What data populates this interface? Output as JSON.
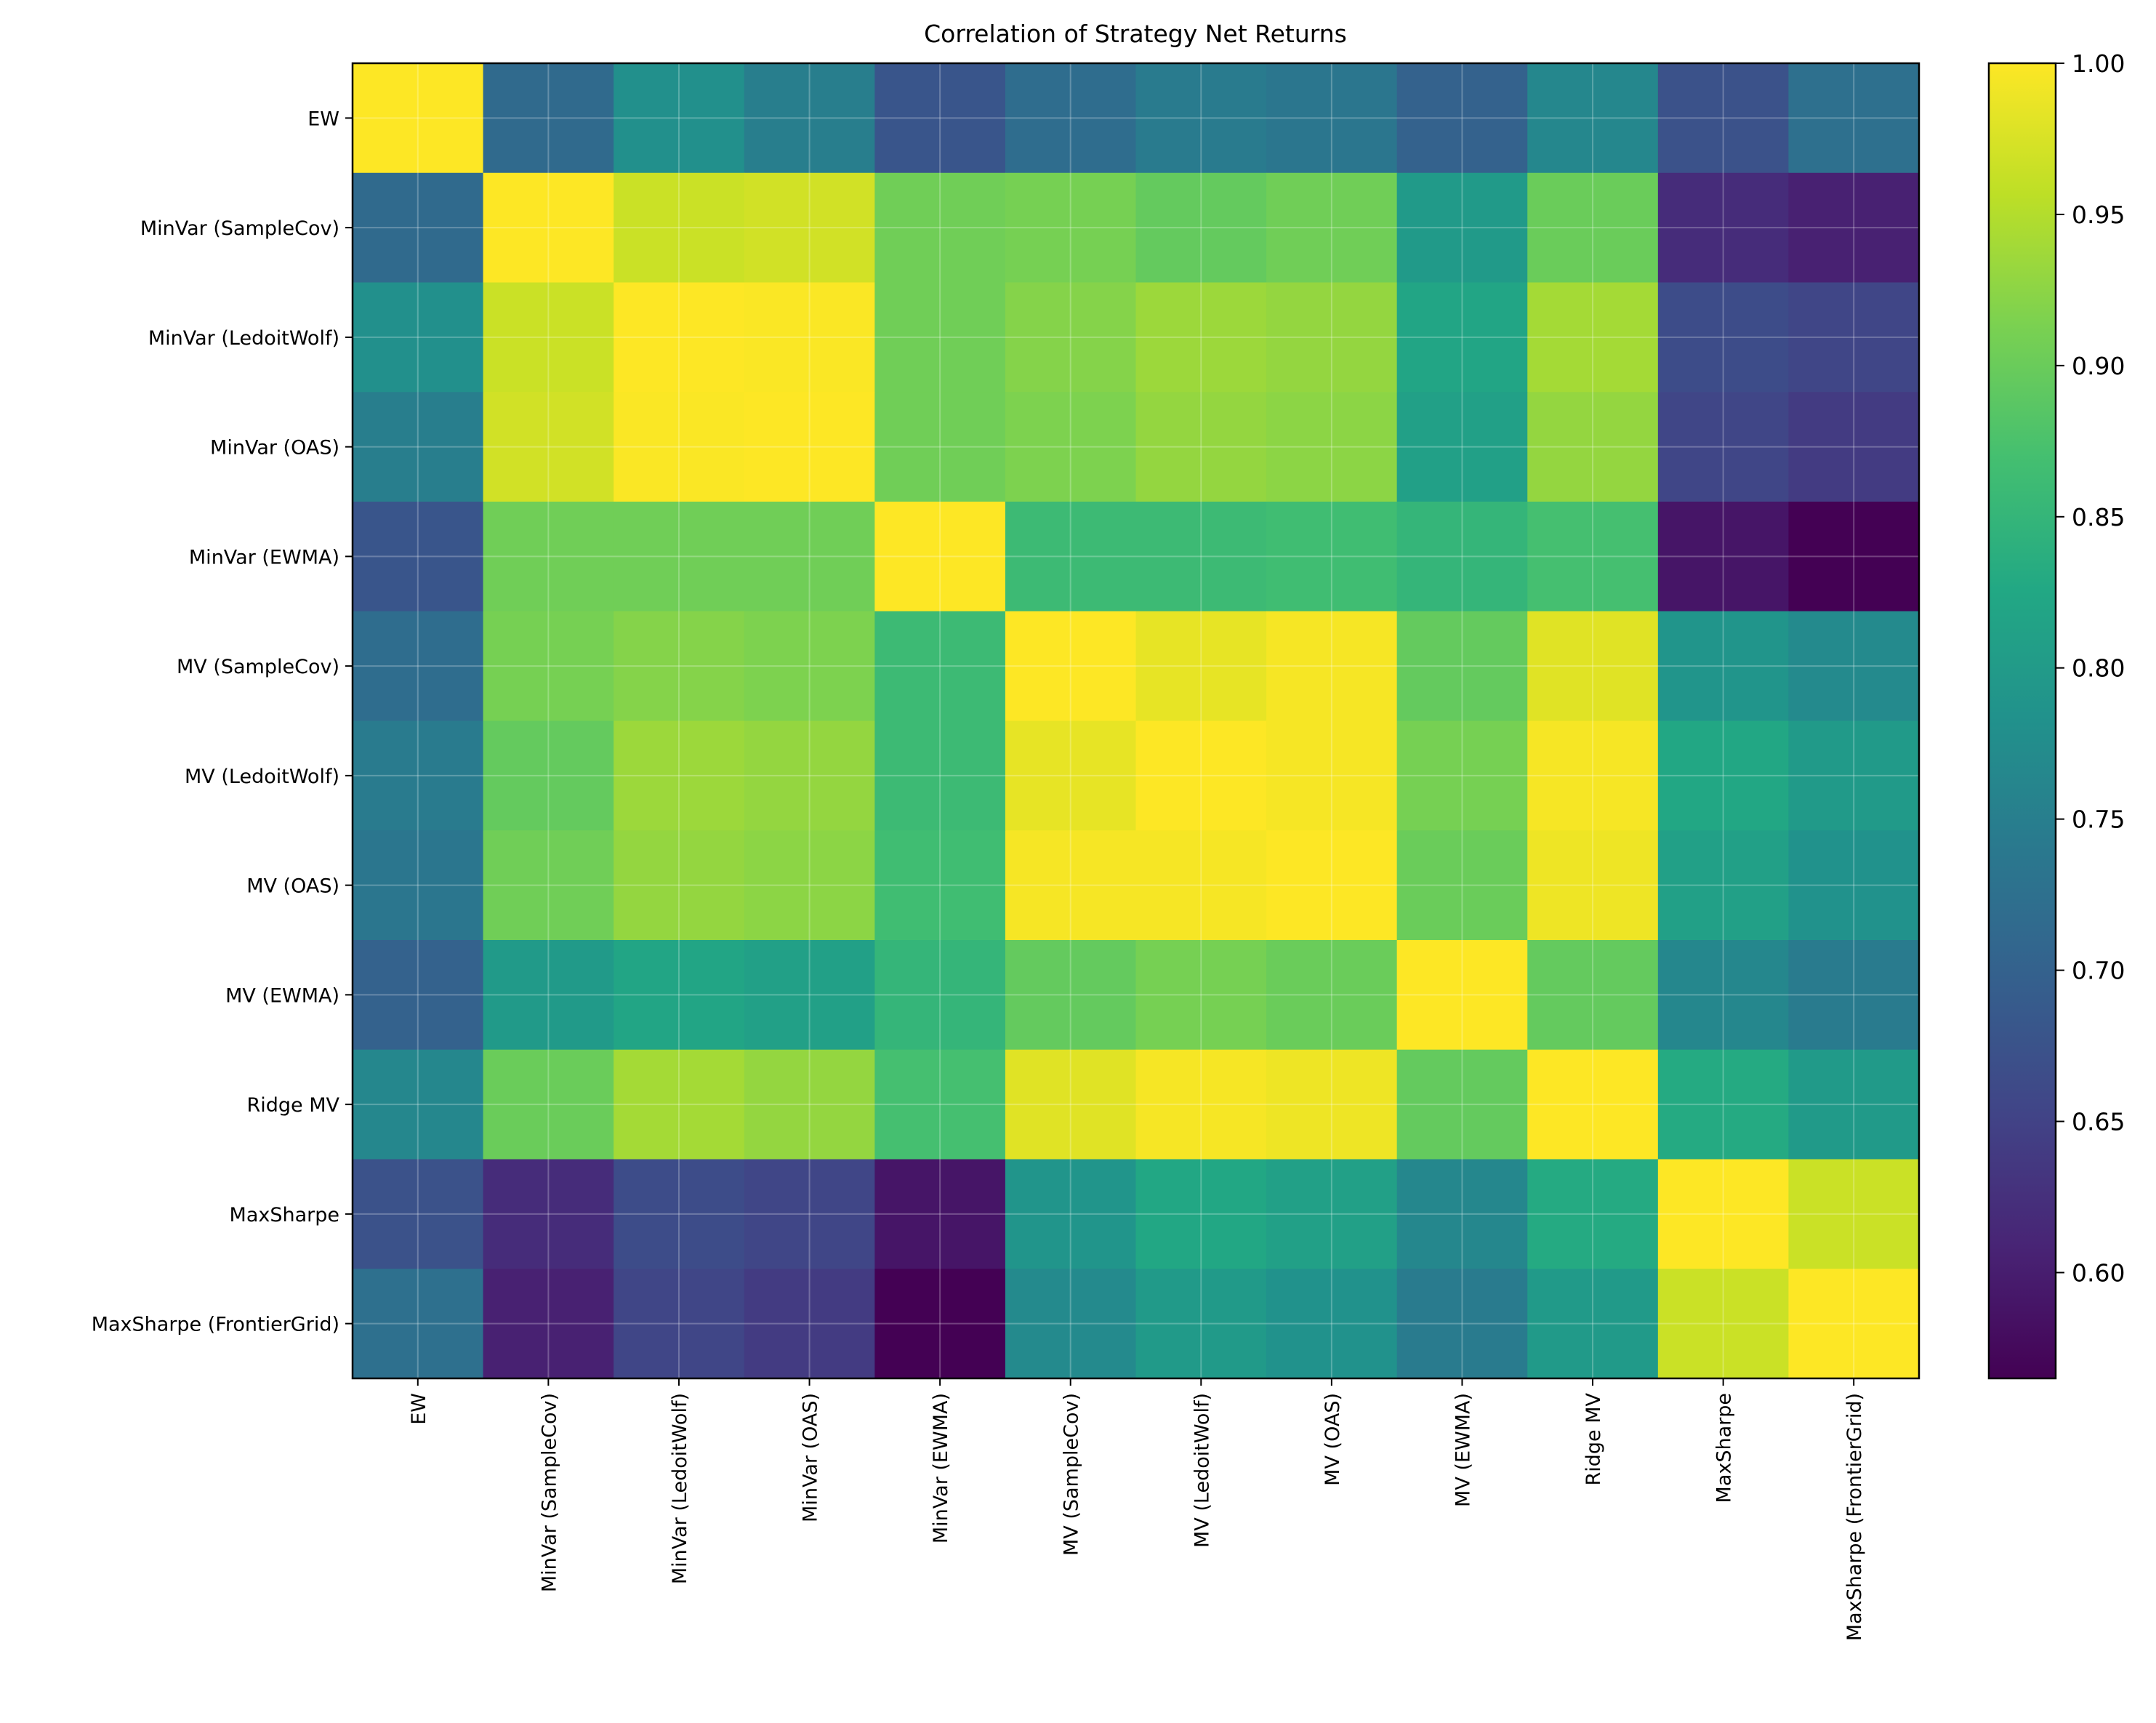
{
  "chart_data": {
    "type": "heatmap",
    "title": "Correlation of Strategy Net Returns",
    "xlabel": "",
    "ylabel": "",
    "labels": [
      "EW",
      "MinVar (SampleCov)",
      "MinVar (LedoitWolf)",
      "MinVar (OAS)",
      "MinVar (EWMA)",
      "MV (SampleCov)",
      "MV (LedoitWolf)",
      "MV (OAS)",
      "MV (EWMA)",
      "Ridge MV",
      "MaxSharpe",
      "MaxSharpe (FrontierGrid)"
    ],
    "values": [
      [
        1.0,
        0.715,
        0.78,
        0.75,
        0.68,
        0.72,
        0.745,
        0.735,
        0.7,
        0.765,
        0.675,
        0.725
      ],
      [
        0.715,
        1.0,
        0.965,
        0.97,
        0.905,
        0.91,
        0.895,
        0.905,
        0.8,
        0.9,
        0.62,
        0.605
      ],
      [
        0.78,
        0.965,
        1.0,
        0.998,
        0.905,
        0.92,
        0.935,
        0.93,
        0.82,
        0.94,
        0.665,
        0.655
      ],
      [
        0.75,
        0.97,
        0.998,
        1.0,
        0.905,
        0.915,
        0.93,
        0.925,
        0.81,
        0.93,
        0.655,
        0.64
      ],
      [
        0.68,
        0.905,
        0.905,
        0.905,
        1.0,
        0.86,
        0.86,
        0.865,
        0.85,
        0.87,
        0.59,
        0.565
      ],
      [
        0.72,
        0.91,
        0.92,
        0.915,
        0.86,
        1.0,
        0.985,
        0.995,
        0.895,
        0.98,
        0.79,
        0.77
      ],
      [
        0.745,
        0.895,
        0.935,
        0.93,
        0.86,
        0.985,
        1.0,
        0.995,
        0.91,
        0.995,
        0.825,
        0.8
      ],
      [
        0.735,
        0.905,
        0.93,
        0.925,
        0.865,
        0.995,
        0.995,
        1.0,
        0.9,
        0.99,
        0.81,
        0.785
      ],
      [
        0.7,
        0.8,
        0.82,
        0.81,
        0.85,
        0.895,
        0.91,
        0.9,
        1.0,
        0.895,
        0.765,
        0.745
      ],
      [
        0.765,
        0.9,
        0.94,
        0.93,
        0.87,
        0.98,
        0.995,
        0.99,
        0.895,
        1.0,
        0.83,
        0.8
      ],
      [
        0.675,
        0.62,
        0.665,
        0.655,
        0.59,
        0.79,
        0.825,
        0.81,
        0.765,
        0.83,
        1.0,
        0.965
      ],
      [
        0.725,
        0.605,
        0.655,
        0.64,
        0.565,
        0.77,
        0.8,
        0.785,
        0.745,
        0.8,
        0.965,
        1.0
      ]
    ],
    "colormap": "viridis",
    "vmin": 0.565,
    "vmax": 1.0,
    "colorbar": {
      "ticks": [
        0.6,
        0.65,
        0.7,
        0.75,
        0.8,
        0.85,
        0.9,
        0.95,
        1.0
      ],
      "tick_labels": [
        "0.60",
        "0.65",
        "0.70",
        "0.75",
        "0.80",
        "0.85",
        "0.90",
        "0.95",
        "1.00"
      ],
      "placement": "right"
    },
    "grid": true
  }
}
